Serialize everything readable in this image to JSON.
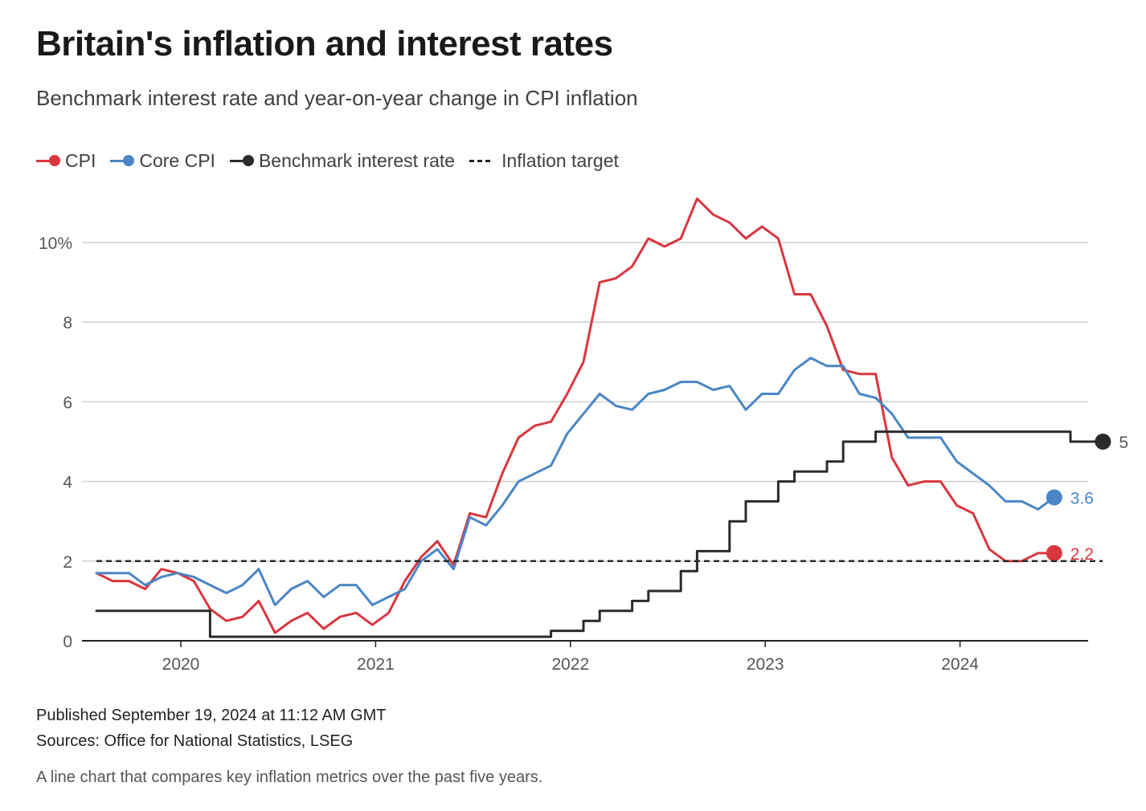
{
  "header": {
    "title": "Britain's inflation and interest rates",
    "subtitle": "Benchmark interest rate and year-on-year change in CPI inflation"
  },
  "legend": [
    {
      "label": "CPI",
      "color": "#d9363e",
      "style": "line-dot"
    },
    {
      "label": "Core CPI",
      "color": "#4a86c5",
      "style": "line-dot"
    },
    {
      "label": "Benchmark interest rate",
      "color": "#2b2b2b",
      "style": "line-dot"
    },
    {
      "label": "Inflation target",
      "color": "#2b2b2b",
      "style": "dashed"
    }
  ],
  "footer": {
    "published": "Published September 19, 2024 at 11:12 AM GMT",
    "sources": "Sources: Office for National Statistics, LSEG",
    "caption": "A line chart that compares key inflation metrics over the past five years."
  },
  "chart_data": {
    "type": "line",
    "x_start": "2019-08",
    "x_unit": "month",
    "xlim": [
      "2019-08",
      "2024-10"
    ],
    "ylim": [
      0,
      11.5
    ],
    "yticks": [
      0,
      2,
      4,
      6,
      8,
      10
    ],
    "ytick_labels": [
      "0",
      "2",
      "4",
      "6",
      "8",
      "10%"
    ],
    "xticks": [
      {
        "label": "2020",
        "at": "2020-01"
      },
      {
        "label": "2021",
        "at": "2021-01"
      },
      {
        "label": "2022",
        "at": "2022-01"
      },
      {
        "label": "2023",
        "at": "2023-01"
      },
      {
        "label": "2024",
        "at": "2024-01"
      }
    ],
    "grid": true,
    "series": [
      {
        "name": "CPI",
        "color": "#d9363e",
        "step": false,
        "end_label": "2.2",
        "values": [
          1.7,
          1.5,
          1.5,
          1.3,
          1.8,
          1.7,
          1.5,
          0.8,
          0.5,
          0.6,
          1.0,
          0.2,
          0.5,
          0.7,
          0.3,
          0.6,
          0.7,
          0.4,
          0.7,
          1.5,
          2.1,
          2.5,
          1.9,
          3.2,
          3.1,
          4.2,
          5.1,
          5.4,
          5.5,
          6.2,
          7.0,
          9.0,
          9.1,
          9.4,
          10.1,
          9.9,
          10.1,
          11.1,
          10.7,
          10.5,
          10.1,
          10.4,
          10.1,
          8.7,
          8.7,
          7.9,
          6.8,
          6.7,
          6.7,
          4.6,
          3.9,
          4.0,
          4.0,
          3.4,
          3.2,
          2.3,
          2.0,
          2.0,
          2.2,
          2.2
        ]
      },
      {
        "name": "Core CPI",
        "color": "#4a86c5",
        "step": false,
        "end_label": "3.6",
        "values": [
          1.7,
          1.7,
          1.7,
          1.4,
          1.6,
          1.7,
          1.6,
          1.4,
          1.2,
          1.4,
          1.8,
          0.9,
          1.3,
          1.5,
          1.1,
          1.4,
          1.4,
          0.9,
          1.1,
          1.3,
          2.0,
          2.3,
          1.8,
          3.1,
          2.9,
          3.4,
          4.0,
          4.2,
          4.4,
          5.2,
          5.7,
          6.2,
          5.9,
          5.8,
          6.2,
          6.3,
          6.5,
          6.5,
          6.3,
          6.4,
          5.8,
          6.2,
          6.2,
          6.8,
          7.1,
          6.9,
          6.9,
          6.2,
          6.1,
          5.7,
          5.1,
          5.1,
          5.1,
          4.5,
          4.2,
          3.9,
          3.5,
          3.5,
          3.3,
          3.6
        ]
      },
      {
        "name": "Benchmark interest rate",
        "color": "#2b2b2b",
        "step": true,
        "end_label": "5",
        "steps": [
          {
            "from": "2019-08",
            "value": 0.75
          },
          {
            "from": "2020-03",
            "value": 0.25
          },
          {
            "from": "2020-03",
            "value": 0.1
          },
          {
            "from": "2021-12",
            "value": 0.25
          },
          {
            "from": "2022-02",
            "value": 0.5
          },
          {
            "from": "2022-03",
            "value": 0.75
          },
          {
            "from": "2022-05",
            "value": 1.0
          },
          {
            "from": "2022-06",
            "value": 1.25
          },
          {
            "from": "2022-08",
            "value": 1.75
          },
          {
            "from": "2022-09",
            "value": 2.25
          },
          {
            "from": "2022-11",
            "value": 3.0
          },
          {
            "from": "2022-12",
            "value": 3.5
          },
          {
            "from": "2023-02",
            "value": 4.0
          },
          {
            "from": "2023-03",
            "value": 4.25
          },
          {
            "from": "2023-05",
            "value": 4.5
          },
          {
            "from": "2023-06",
            "value": 5.0
          },
          {
            "from": "2023-08",
            "value": 5.25
          },
          {
            "from": "2024-08",
            "value": 5.0
          },
          {
            "from": "2024-10",
            "value": 5.0
          }
        ]
      },
      {
        "name": "Inflation target",
        "color": "#2b2b2b",
        "dashed": true,
        "value": 2.0,
        "range": [
          "2019-08",
          "2024-09"
        ]
      }
    ]
  }
}
